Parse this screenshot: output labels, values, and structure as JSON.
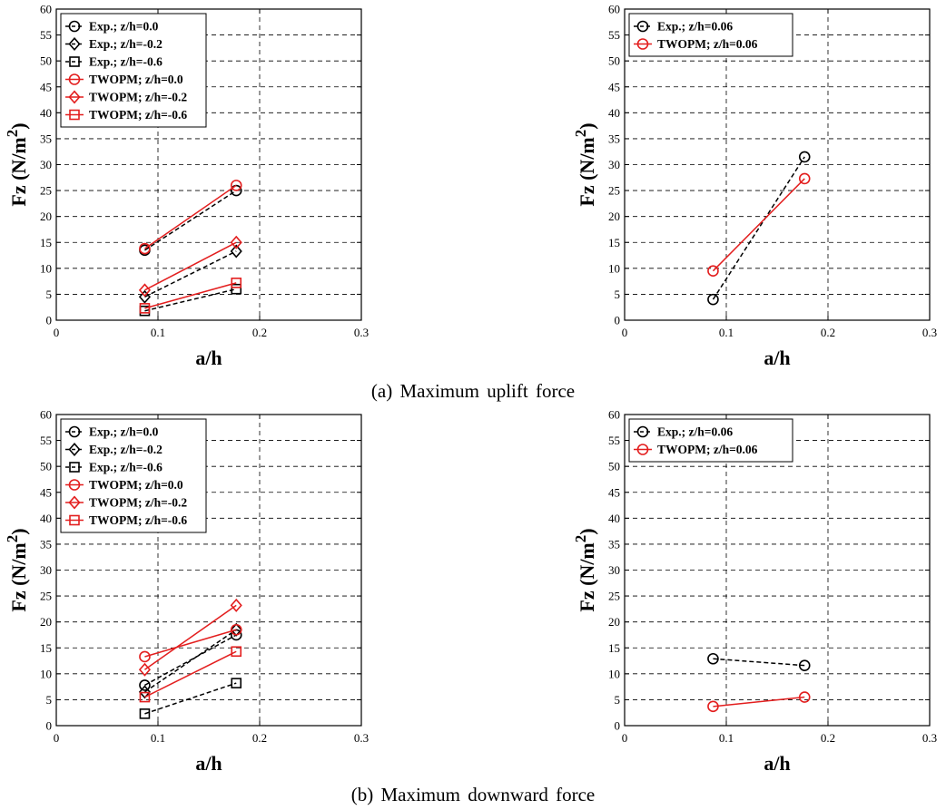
{
  "captions": {
    "top": "(a)  Maximum  uplift  force",
    "bottom": "(b)  Maximum  downward  force"
  },
  "colors": {
    "exp": "#000000",
    "twopm": "#e31e1e"
  },
  "chart_data": [
    {
      "type": "line",
      "xlabel": "a/h",
      "ylabel": "Fz (N/m2)",
      "ylabel_base": "Fz (N/m",
      "ylabel_sup": "2",
      "ylabel_close": ")",
      "xlim": [
        0,
        0.3
      ],
      "ylim": [
        0,
        60
      ],
      "xticks": [
        "0",
        "0.1",
        "0.2",
        "0.3"
      ],
      "yticks": [
        "0",
        "5",
        "10",
        "15",
        "20",
        "25",
        "30",
        "35",
        "40",
        "45",
        "50",
        "55",
        "60"
      ],
      "grid": true,
      "legend_position": "top-left",
      "series": [
        {
          "name": "Exp.; z/h=0.0",
          "marker": "circle",
          "style": "dashed",
          "color": "black",
          "x": [
            0.087,
            0.177
          ],
          "y": [
            13.5,
            25.0
          ]
        },
        {
          "name": "Exp.; z/h=-0.2",
          "marker": "diamond",
          "style": "dashed",
          "color": "black",
          "x": [
            0.087,
            0.177
          ],
          "y": [
            4.5,
            13.3
          ]
        },
        {
          "name": "Exp.; z/h=-0.6",
          "marker": "square",
          "style": "dashed",
          "color": "black",
          "x": [
            0.087,
            0.177
          ],
          "y": [
            1.8,
            6.0
          ]
        },
        {
          "name": "TWOPM; z/h=0.0",
          "marker": "circle",
          "style": "solid",
          "color": "red",
          "x": [
            0.087,
            0.177
          ],
          "y": [
            13.8,
            26.0
          ]
        },
        {
          "name": "TWOPM; z/h=-0.2",
          "marker": "diamond",
          "style": "solid",
          "color": "red",
          "x": [
            0.087,
            0.177
          ],
          "y": [
            5.8,
            15.0
          ]
        },
        {
          "name": "TWOPM; z/h=-0.6",
          "marker": "square",
          "style": "solid",
          "color": "red",
          "x": [
            0.087,
            0.177
          ],
          "y": [
            2.3,
            7.2
          ]
        }
      ]
    },
    {
      "type": "line",
      "xlabel": "a/h",
      "ylabel": "Fz (N/m2)",
      "ylabel_base": "Fz (N/m",
      "ylabel_sup": "2",
      "ylabel_close": ")",
      "xlim": [
        0,
        0.3
      ],
      "ylim": [
        0,
        60
      ],
      "xticks": [
        "0",
        "0.1",
        "0.2",
        "0.3"
      ],
      "yticks": [
        "0",
        "5",
        "10",
        "15",
        "20",
        "25",
        "30",
        "35",
        "40",
        "45",
        "50",
        "55",
        "60"
      ],
      "grid": true,
      "legend_position": "top-left",
      "series": [
        {
          "name": "Exp.; z/h=0.06",
          "marker": "circle",
          "style": "dashed",
          "color": "black",
          "x": [
            0.087,
            0.177
          ],
          "y": [
            4.0,
            31.5
          ]
        },
        {
          "name": "TWOPM; z/h=0.06",
          "marker": "circle",
          "style": "solid",
          "color": "red",
          "x": [
            0.087,
            0.177
          ],
          "y": [
            9.5,
            27.3
          ]
        }
      ]
    },
    {
      "type": "line",
      "xlabel": "a/h",
      "ylabel": "Fz (N/m2)",
      "ylabel_base": "Fz (N/m",
      "ylabel_sup": "2",
      "ylabel_close": ")",
      "xlim": [
        0,
        0.3
      ],
      "ylim": [
        0,
        60
      ],
      "xticks": [
        "0",
        "0.1",
        "0.2",
        "0.3"
      ],
      "yticks": [
        "0",
        "5",
        "10",
        "15",
        "20",
        "25",
        "30",
        "35",
        "40",
        "45",
        "50",
        "55",
        "60"
      ],
      "grid": true,
      "legend_position": "top-left",
      "series": [
        {
          "name": "Exp.; z/h=0.0",
          "marker": "circle",
          "style": "dashed",
          "color": "black",
          "x": [
            0.087,
            0.177
          ],
          "y": [
            7.8,
            17.5
          ]
        },
        {
          "name": "Exp.; z/h=-0.2",
          "marker": "diamond",
          "style": "dashed",
          "color": "black",
          "x": [
            0.087,
            0.177
          ],
          "y": [
            6.5,
            18.5
          ]
        },
        {
          "name": "Exp.; z/h=-0.6",
          "marker": "square",
          "style": "dashed",
          "color": "black",
          "x": [
            0.087,
            0.177
          ],
          "y": [
            2.3,
            8.2
          ]
        },
        {
          "name": "TWOPM; z/h=0.0",
          "marker": "circle",
          "style": "solid",
          "color": "red",
          "x": [
            0.087,
            0.177
          ],
          "y": [
            13.3,
            18.5
          ]
        },
        {
          "name": "TWOPM; z/h=-0.2",
          "marker": "diamond",
          "style": "solid",
          "color": "red",
          "x": [
            0.087,
            0.177
          ],
          "y": [
            10.8,
            23.2
          ]
        },
        {
          "name": "TWOPM; z/h=-0.6",
          "marker": "square",
          "style": "solid",
          "color": "red",
          "x": [
            0.087,
            0.177
          ],
          "y": [
            5.5,
            14.3
          ]
        }
      ]
    },
    {
      "type": "line",
      "xlabel": "a/h",
      "ylabel": "Fz (N/m2)",
      "ylabel_base": "Fz (N/m",
      "ylabel_sup": "2",
      "ylabel_close": ")",
      "xlim": [
        0,
        0.3
      ],
      "ylim": [
        0,
        60
      ],
      "xticks": [
        "0",
        "0.1",
        "0.2",
        "0.3"
      ],
      "yticks": [
        "0",
        "5",
        "10",
        "15",
        "20",
        "25",
        "30",
        "35",
        "40",
        "45",
        "50",
        "55",
        "60"
      ],
      "grid": true,
      "legend_position": "top-left",
      "series": [
        {
          "name": "Exp.; z/h=0.06",
          "marker": "circle",
          "style": "dashed",
          "color": "black",
          "x": [
            0.087,
            0.177
          ],
          "y": [
            12.9,
            11.6
          ]
        },
        {
          "name": "TWOPM; z/h=0.06",
          "marker": "circle",
          "style": "solid",
          "color": "red",
          "x": [
            0.087,
            0.177
          ],
          "y": [
            3.7,
            5.5
          ]
        }
      ]
    }
  ]
}
